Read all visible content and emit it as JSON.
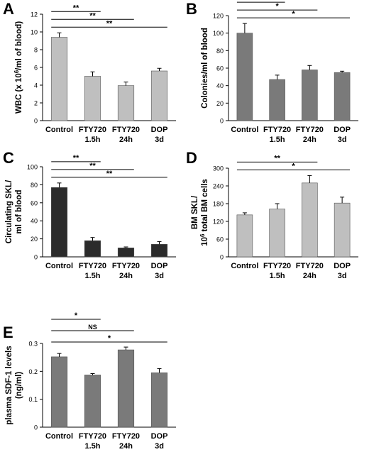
{
  "chart_data": [
    {
      "panel": "A",
      "type": "bar",
      "categories": [
        [
          "Control"
        ],
        [
          "FTY720",
          "1.5h"
        ],
        [
          "FTY720",
          "24h"
        ],
        [
          "DOP",
          "3d"
        ]
      ],
      "values": [
        9.4,
        5.0,
        3.95,
        5.6
      ],
      "errors": [
        0.5,
        0.5,
        0.4,
        0.3
      ],
      "ylim": [
        0,
        12
      ],
      "yticks": [
        "0",
        "2",
        "4",
        "6",
        "8",
        "10",
        "12"
      ],
      "ylabel": [
        "WBC (x 10",
        "6",
        "/ml of blood)"
      ],
      "bar_color": "#bfbfbf",
      "significance": [
        {
          "to": 1,
          "label": "**"
        },
        {
          "to": 2,
          "label": "**"
        },
        {
          "to": 3,
          "label": "**"
        }
      ]
    },
    {
      "panel": "B",
      "type": "bar",
      "categories": [
        [
          "Control"
        ],
        [
          "FTY720",
          "1.5h"
        ],
        [
          "FTY720",
          "24h"
        ],
        [
          "DOP",
          "3d"
        ]
      ],
      "values": [
        100,
        47,
        58,
        55
      ],
      "errors": [
        11,
        5,
        5,
        1.5
      ],
      "ylim": [
        0,
        120
      ],
      "yticks": [
        "0",
        "20",
        "40",
        "60",
        "80",
        "100",
        "120"
      ],
      "ylabel": [
        "Colonies/ml of blood"
      ],
      "bar_color": "#7a7a7a",
      "significance": [
        {
          "to": 1,
          "label": "**"
        },
        {
          "to": 2,
          "label": "*"
        },
        {
          "to": 3,
          "label": "*"
        }
      ]
    },
    {
      "panel": "C",
      "type": "bar",
      "categories": [
        [
          "Control"
        ],
        [
          "FTY720",
          "1.5h"
        ],
        [
          "FTY720",
          "24h"
        ],
        [
          "DOP",
          "3d"
        ]
      ],
      "values": [
        77,
        18,
        10,
        14
      ],
      "errors": [
        5,
        3.5,
        1,
        3
      ],
      "ylim": [
        0,
        100
      ],
      "yticks": [
        "0",
        "20",
        "40",
        "60",
        "80",
        "100"
      ],
      "ylabel": [
        "Circulating SKL/",
        "ml of blood"
      ],
      "bar_color": "#2b2b2b",
      "significance": [
        {
          "to": 1,
          "label": "**"
        },
        {
          "to": 2,
          "label": "**"
        },
        {
          "to": 3,
          "label": "**"
        }
      ]
    },
    {
      "panel": "D",
      "type": "bar",
      "categories": [
        [
          "Control"
        ],
        [
          "FTY720",
          "1.5h"
        ],
        [
          "FTY720",
          "24h"
        ],
        [
          "DOP",
          "3d"
        ]
      ],
      "values": [
        142,
        162,
        250,
        182
      ],
      "errors": [
        7,
        18,
        25,
        20
      ],
      "ylim": [
        0,
        300
      ],
      "yticks": [
        "0",
        "60",
        "120",
        "180",
        "240",
        "300"
      ],
      "ylabel": [
        "BM SKL/",
        "10",
        "6",
        " total BM cells"
      ],
      "bar_color": "#bfbfbf",
      "significance": [
        {
          "to": 2,
          "label": "**"
        },
        {
          "to": 3,
          "label": "*"
        }
      ]
    },
    {
      "panel": "E",
      "type": "bar",
      "categories": [
        [
          "Control"
        ],
        [
          "FTY720",
          "1.5h"
        ],
        [
          "FTY720",
          "24h"
        ],
        [
          "DOP",
          "3d"
        ]
      ],
      "values": [
        0.252,
        0.187,
        0.277,
        0.195
      ],
      "errors": [
        0.012,
        0.005,
        0.01,
        0.015
      ],
      "ylim": [
        0,
        0.3
      ],
      "yticks": [
        "0",
        "0.1",
        "0.2",
        "0.3"
      ],
      "ylabel": [
        "plasma SDF-1 levels",
        "(ng/ml)"
      ],
      "bar_color": "#7a7a7a",
      "significance": [
        {
          "to": 1,
          "label": "*"
        },
        {
          "to": 2,
          "label": "NS"
        },
        {
          "to": 3,
          "label": "*"
        }
      ]
    }
  ]
}
